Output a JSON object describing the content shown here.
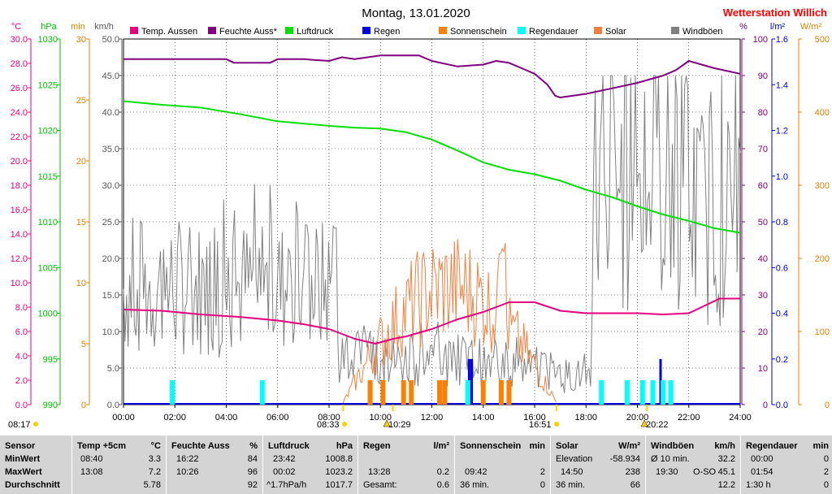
{
  "header": {
    "title": "Montag, 13.01.2020",
    "brand": "Wetterstation Willich",
    "brand_color": "#ff0000"
  },
  "axes": {
    "temp_unit": "°C",
    "hpa_unit": "hPa",
    "min_unit": "min",
    "kmh_unit": "km/h",
    "pct_unit": "%",
    "lm2_unit": "l/m²",
    "wm2_unit": "W/m²"
  },
  "chart_data": {
    "type": "line",
    "x_range": [
      "00:00",
      "24:00"
    ],
    "x_ticks": [
      "00:00",
      "02:00",
      "04:00",
      "06:00",
      "08:00",
      "10:00",
      "12:00",
      "14:00",
      "16:00",
      "18:00",
      "20:00",
      "22:00",
      "24:00"
    ],
    "axis_temp": {
      "unit": "°C",
      "range": [
        0,
        30
      ],
      "ticks": [
        "0.0",
        "2.0",
        "4.0",
        "6.0",
        "8.0",
        "10.0",
        "12.0",
        "14.0",
        "16.0",
        "18.0",
        "20.0",
        "22.0",
        "24.0",
        "26.0",
        "28.0",
        "30.0"
      ]
    },
    "axis_pressure": {
      "unit": "hPa",
      "range": [
        990,
        1030
      ],
      "ticks": [
        "990",
        "995",
        "1000",
        "1005",
        "1010",
        "1015",
        "1020",
        "1025",
        "1030"
      ]
    },
    "axis_minutes": {
      "unit": "min",
      "range": [
        0,
        30
      ],
      "ticks": [
        "0",
        "5",
        "10",
        "15",
        "20",
        "25",
        "30"
      ]
    },
    "axis_wind": {
      "unit": "km/h",
      "range": [
        0,
        50
      ],
      "ticks": [
        "0.0",
        "5.0",
        "10.0",
        "15.0",
        "20.0",
        "25.0",
        "30.0",
        "35.0",
        "40.0",
        "45.0",
        "50.0"
      ]
    },
    "axis_humidity": {
      "unit": "%",
      "range": [
        0,
        100
      ],
      "ticks": [
        "0",
        "10",
        "20",
        "30",
        "40",
        "50",
        "60",
        "70",
        "80",
        "90",
        "100"
      ]
    },
    "axis_rain": {
      "unit": "l/m²",
      "range": [
        0,
        1.6
      ],
      "ticks": [
        "0.0",
        "0.2",
        "0.4",
        "0.6",
        "0.8",
        "1.0",
        "1.2",
        "1.4",
        "1.6"
      ]
    },
    "axis_solar": {
      "unit": "W/m²",
      "range": [
        0,
        500
      ],
      "ticks": [
        "0",
        "100",
        "200",
        "300",
        "400",
        "500"
      ]
    },
    "legend": [
      {
        "name": "Temp. Aussen",
        "color": "#e6007e"
      },
      {
        "name": "Feuchte Auss*",
        "color": "#800080"
      },
      {
        "name": "Luftdruck",
        "color": "#00e000"
      },
      {
        "name": "Regen",
        "color": "#0000e0"
      },
      {
        "name": "Sonnenschein",
        "color": "#ff8000"
      },
      {
        "name": "Regendauer",
        "color": "#00ffff"
      },
      {
        "name": "Solar",
        "color": "#f08040"
      },
      {
        "name": "Windböen",
        "color": "#808080"
      }
    ],
    "series": [
      {
        "name": "Temp. Aussen",
        "axis": "temp",
        "color": "#e6007e",
        "points": [
          [
            0,
            7.8
          ],
          [
            1.5,
            7.7
          ],
          [
            3,
            7.4
          ],
          [
            4.5,
            7.2
          ],
          [
            6,
            6.9
          ],
          [
            7,
            6.6
          ],
          [
            8,
            6.2
          ],
          [
            9,
            5.4
          ],
          [
            9.8,
            5.0
          ],
          [
            10.5,
            5.4
          ],
          [
            11,
            5.6
          ],
          [
            12,
            6.2
          ],
          [
            13,
            7.0
          ],
          [
            14,
            7.6
          ],
          [
            15,
            8.4
          ],
          [
            16,
            8.4
          ],
          [
            17,
            7.7
          ],
          [
            18,
            7.5
          ],
          [
            20,
            7.5
          ],
          [
            21,
            7.4
          ],
          [
            22,
            7.5
          ],
          [
            22.5,
            8.0
          ],
          [
            23.2,
            8.7
          ],
          [
            24,
            8.7
          ]
        ]
      },
      {
        "name": "Feuchte Auss*",
        "axis": "humidity",
        "color": "#800080",
        "points": [
          [
            0,
            94.5
          ],
          [
            4,
            94.5
          ],
          [
            4.3,
            93.5
          ],
          [
            5.7,
            93.5
          ],
          [
            6,
            94.5
          ],
          [
            7,
            94.5
          ],
          [
            8,
            94
          ],
          [
            8.5,
            95
          ],
          [
            9,
            94.5
          ],
          [
            10,
            95.5
          ],
          [
            11,
            95.5
          ],
          [
            11.5,
            95.5
          ],
          [
            12,
            94
          ],
          [
            13,
            92.5
          ],
          [
            14,
            93
          ],
          [
            14.5,
            94
          ],
          [
            15,
            93.5
          ],
          [
            16,
            90.5
          ],
          [
            16.5,
            87.5
          ],
          [
            16.8,
            84.5
          ],
          [
            17,
            84
          ],
          [
            18,
            85
          ],
          [
            19,
            86.5
          ],
          [
            20,
            88
          ],
          [
            21,
            90
          ],
          [
            21.5,
            91.5
          ],
          [
            22,
            94
          ],
          [
            23,
            92
          ],
          [
            24,
            90.5
          ]
        ]
      },
      {
        "name": "Luftdruck",
        "axis": "pressure",
        "color": "#00e000",
        "points": [
          [
            0,
            1023.2
          ],
          [
            1.5,
            1022.8
          ],
          [
            3,
            1022.5
          ],
          [
            4.5,
            1021.8
          ],
          [
            6,
            1021.0
          ],
          [
            8,
            1020.5
          ],
          [
            9,
            1020.3
          ],
          [
            10,
            1020.2
          ],
          [
            11,
            1019.8
          ],
          [
            12,
            1019.0
          ],
          [
            13,
            1017.8
          ],
          [
            14,
            1016.5
          ],
          [
            15,
            1015.7
          ],
          [
            16,
            1015.2
          ],
          [
            17,
            1014.5
          ],
          [
            18,
            1013.5
          ],
          [
            19,
            1012.7
          ],
          [
            20,
            1011.7
          ],
          [
            21,
            1010.8
          ],
          [
            22,
            1010.1
          ],
          [
            23,
            1009.3
          ],
          [
            24,
            1008.8
          ]
        ]
      }
    ],
    "bars": [
      {
        "name": "Regen",
        "axis": "rain",
        "color": "#0000e0",
        "values": [
          [
            13.45,
            0.2
          ],
          [
            13.55,
            0.2
          ],
          [
            20.9,
            0.2
          ]
        ]
      },
      {
        "name": "Sonnenschein",
        "axis": "minutes",
        "color": "#ff8000",
        "values": [
          [
            9.6,
            2
          ],
          [
            10.1,
            2
          ],
          [
            10.9,
            2
          ],
          [
            11.2,
            2
          ],
          [
            12.3,
            2
          ],
          [
            12.5,
            2
          ],
          [
            14.0,
            2
          ],
          [
            14.7,
            2
          ],
          [
            15.0,
            2
          ]
        ]
      },
      {
        "name": "Regendauer",
        "axis": "minutes",
        "color": "#00ffff",
        "values": [
          [
            1.9,
            2
          ],
          [
            5.4,
            2
          ],
          [
            13.4,
            2
          ],
          [
            18.6,
            2
          ],
          [
            19.6,
            2
          ],
          [
            20.2,
            2
          ],
          [
            20.6,
            2
          ],
          [
            21.0,
            2
          ],
          [
            21.3,
            2
          ]
        ]
      }
    ],
    "events": {
      "sunrise": "08:33",
      "sunset": "16:51",
      "moonrise": "20:22",
      "moonset": "10:29",
      "prev": "08:17"
    }
  },
  "stats": {
    "row_labels": {
      "title": "Sensor",
      "min": "MinWert",
      "max": "MaxWert",
      "avg": "Durchschnitt"
    },
    "temp": {
      "title": "Temp +5cm",
      "unit": "°C",
      "min_time": "08:40",
      "min_val": "3.3",
      "max_time": "13:08",
      "max_val": "7.2",
      "avg": "5.78"
    },
    "hum": {
      "title": "Feuchte Auss",
      "unit": "%",
      "min_time": "16:22",
      "min_val": "84",
      "max_time": "10:26",
      "max_val": "96",
      "avg": "92"
    },
    "press": {
      "title": "Luftdruck",
      "unit": "hPa",
      "min_time": "23:42",
      "min_val": "1008.8",
      "max_time": "00:02",
      "max_val": "1023.2",
      "avg_label": "^1.7hPa/h",
      "avg": "1017.7"
    },
    "rain": {
      "title": "Regen",
      "unit": "l/m²",
      "max_time": "13:28",
      "max_val": "0.2",
      "avg_label": "Gesamt:",
      "avg": "0.6"
    },
    "sun": {
      "title": "Sonnenschein",
      "unit": "min",
      "max_time": "09:42",
      "max_val": "2",
      "avg_label": "36 min.",
      "avg": "0"
    },
    "solar": {
      "title": "Solar",
      "unit": "W/m²",
      "min_label": "Elevation",
      "min_val": "-58.934",
      "max_time": "14:50",
      "max_val": "238",
      "avg_label": "36 min.",
      "avg": "66"
    },
    "wind": {
      "title": "Windböen",
      "unit": "km/h",
      "min_label": "Ø 10 min.",
      "min_val": "32.2",
      "max_time": "19:30",
      "max_dir": "O-SO",
      "max_val": "45.1",
      "avg": "12.2"
    },
    "rdur": {
      "title": "Regendauer",
      "unit": "min",
      "min_time": "00:00",
      "min_val": "0",
      "max_time": "01:54",
      "max_val": "2",
      "avg_label": "1:30 h",
      "avg": "0"
    }
  }
}
